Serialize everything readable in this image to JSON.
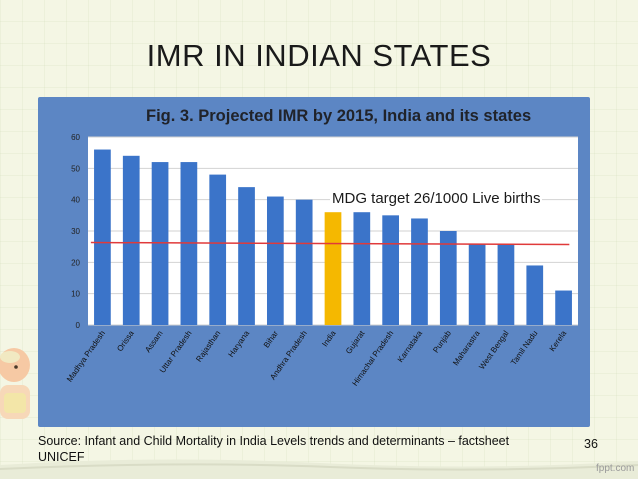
{
  "slide": {
    "title": "IMR IN INDIAN STATES",
    "source_line1": "Source: Infant and Child Mortality in India Levels trends and determinants – factsheet",
    "source_line2": "UNICEF",
    "page_number": "36",
    "watermark": "fppt.com"
  },
  "colors": {
    "bar": "#3b74c9",
    "highlight": "#f5b800",
    "target_line": "#e03a3a",
    "frame": "#5c86c4"
  },
  "icons": [
    "baby-illustration"
  ],
  "chart_data": {
    "type": "bar",
    "title": "Fig. 3. Projected IMR by 2015, India and its states",
    "categories": [
      "Madhya Pradesh",
      "Orissa",
      "Assam",
      "Uttar Pradesh",
      "Rajasthan",
      "Haryana",
      "Bihar",
      "Andhra Pradesh",
      "India",
      "Gujarat",
      "Himachal Pradesh",
      "Karnataka",
      "Punjab",
      "Maharastra",
      "West Bengal",
      "Tamil Nadu",
      "Kerela"
    ],
    "values": [
      56,
      54,
      52,
      52,
      48,
      44,
      41,
      40,
      36,
      36,
      35,
      34,
      30,
      26,
      26,
      19,
      11
    ],
    "highlight_category": "India",
    "target_value": 26,
    "annotation": "MDG target 26/1000 Live births",
    "ylim": [
      0,
      60
    ],
    "yticks": [
      "0",
      "10",
      "20",
      "30",
      "40",
      "50",
      "60"
    ],
    "grid": true,
    "xlabel": "",
    "ylabel": ""
  }
}
